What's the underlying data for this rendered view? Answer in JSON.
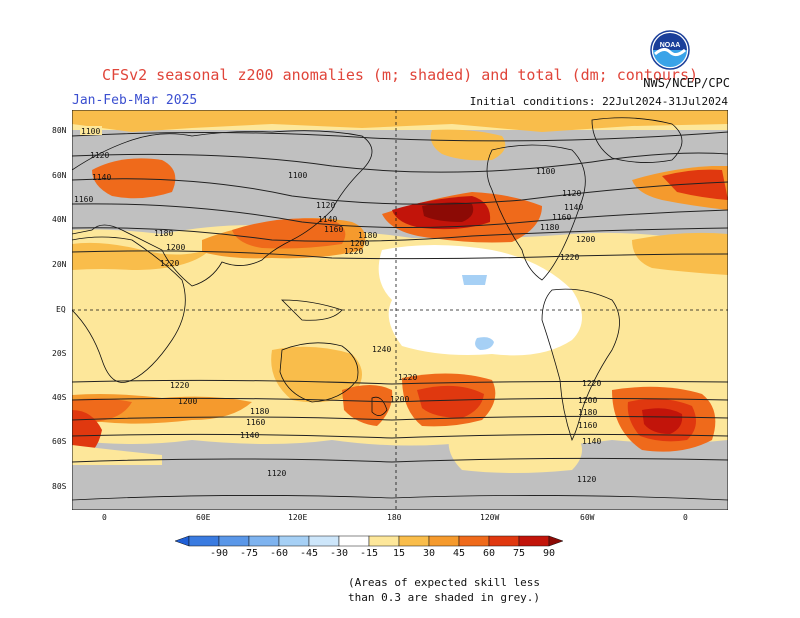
{
  "title": "CFSv2 seasonal z200 anomalies (m; shaded) and total (dm; contours)",
  "period": "Jan-Feb-Mar 2025",
  "initial_conditions": "Initial conditions: 22Jul2024-31Jul2024",
  "agency": "NWS/NCEP/CPC",
  "logo_text": "NOAA",
  "lat_labels": [
    "80N",
    "60N",
    "40N",
    "20N",
    "EQ",
    "20S",
    "40S",
    "60S",
    "80S"
  ],
  "lon_labels": [
    "0",
    "60E",
    "120E",
    "180",
    "120W",
    "60W",
    "0"
  ],
  "colorbar": {
    "labels": [
      "-90",
      "-75",
      "-60",
      "-45",
      "-30",
      "-15",
      "15",
      "30",
      "45",
      "60",
      "75",
      "90"
    ],
    "colors": [
      "#1f5fd6",
      "#3a7be0",
      "#5a97e8",
      "#7eb3ef",
      "#a6d0f5",
      "#cde6fa",
      "#ffffff",
      "#fde79a",
      "#f9bd4b",
      "#f59a2d",
      "#ef6a1b",
      "#e0380f",
      "#c2140a",
      "#8c0a05"
    ]
  },
  "contour_labels": [
    "1100",
    "1120",
    "1140",
    "1160",
    "1180",
    "1200",
    "1220",
    "1240"
  ],
  "skill_color": "#c0c0c0",
  "note_line1": "(Areas of expected skill less",
  "note_line2": "than 0.3 are shaded in grey.)"
}
